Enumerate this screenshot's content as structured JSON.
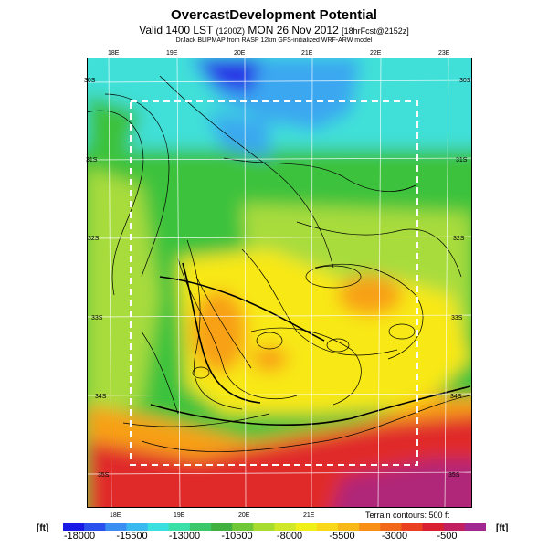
{
  "header": {
    "title": "OvercastDevelopment Potential",
    "valid_prefix": "Valid 1400 LST",
    "valid_code": "(1200Z)",
    "valid_date": "MON 26 Nov 2012",
    "valid_suffix": "[18hrFcst@2152z]",
    "credit": "DrJack BLIPMAP from RASP 12km GFS-initialized WRF-ARW model"
  },
  "map": {
    "lon_labels": [
      "18E",
      "19E",
      "20E",
      "21E",
      "22E",
      "23E"
    ],
    "lat_labels_left": [
      "30S",
      "31S",
      "32S",
      "33S",
      "34S",
      "35S"
    ],
    "lat_labels_right": [
      "30S",
      "31S",
      "32S",
      "33S",
      "34S",
      "35S"
    ],
    "terrain_note": "Terrain contours: 500 ft",
    "colors": {
      "deep_blue": "#2a32e6",
      "light_blue": "#3aa7f0",
      "cyan": "#40e0d8",
      "green": "#3cc23c",
      "lime": "#a8dc3c",
      "yellow": "#f8e818",
      "orange": "#f8a018",
      "red": "#e02a2a",
      "magenta": "#b02878",
      "dashed_box": "#ffffff"
    }
  },
  "colorbar": {
    "unit_left": "[ft]",
    "unit_right": "[ft]",
    "labels": [
      "-18000",
      "-15500",
      "-13000",
      "-10500",
      "-8000",
      "-5500",
      "-3000",
      "-500"
    ],
    "colors": [
      "#1a1ae6",
      "#2a50ee",
      "#3a8ef2",
      "#3ab8f0",
      "#3ae0e0",
      "#3ae0a8",
      "#3cc86a",
      "#40b040",
      "#70c838",
      "#a8dc30",
      "#d0e828",
      "#f0f018",
      "#f8d818",
      "#f8b818",
      "#f89018",
      "#f06818",
      "#e84020",
      "#d82030",
      "#c02060",
      "#a02890"
    ]
  }
}
